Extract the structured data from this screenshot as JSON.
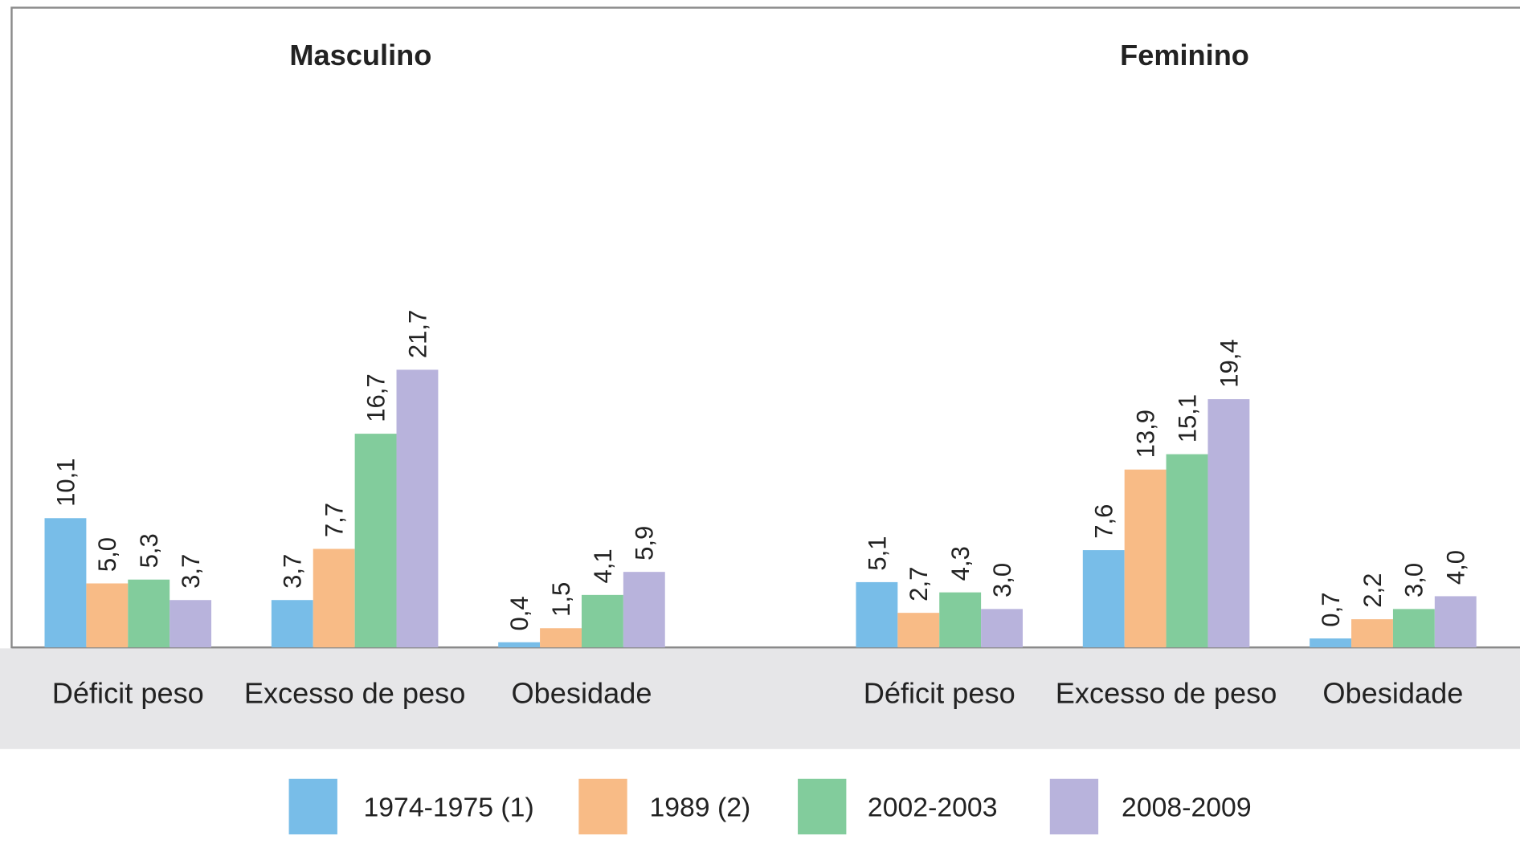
{
  "chart_data": {
    "type": "bar",
    "ylim": [
      0,
      50
    ],
    "series": [
      {
        "name": "1974-1975 (1)",
        "color": "#78bde8"
      },
      {
        "name": "1989 (2)",
        "color": "#f8bb86"
      },
      {
        "name": "2002-2003",
        "color": "#82cc9c"
      },
      {
        "name": "2008-2009",
        "color": "#b8b3dc"
      }
    ],
    "panels": [
      {
        "title": "Masculino",
        "categories": [
          "Déficit peso",
          "Excesso de peso",
          "Obesidade"
        ],
        "series": [
          {
            "values": [
              10.1,
              3.7,
              0.4
            ],
            "value_labels": [
              "10,1",
              "3,7",
              "0,4"
            ]
          },
          {
            "values": [
              5.0,
              7.7,
              1.5
            ],
            "value_labels": [
              "5,0",
              "7,7",
              "1,5"
            ]
          },
          {
            "values": [
              5.3,
              16.7,
              4.1
            ],
            "value_labels": [
              "5,3",
              "16,7",
              "4,1"
            ]
          },
          {
            "values": [
              3.7,
              21.7,
              5.9
            ],
            "value_labels": [
              "3,7",
              "21,7",
              "5,9"
            ]
          }
        ]
      },
      {
        "title": "Feminino",
        "categories": [
          "Déficit peso",
          "Excesso de peso",
          "Obesidade"
        ],
        "series": [
          {
            "values": [
              5.1,
              7.6,
              0.7
            ],
            "value_labels": [
              "5,1",
              "7,6",
              "0,7"
            ]
          },
          {
            "values": [
              2.7,
              13.9,
              2.2
            ],
            "value_labels": [
              "2,7",
              "13,9",
              "2,2"
            ]
          },
          {
            "values": [
              4.3,
              15.1,
              3.0
            ],
            "value_labels": [
              "4,3",
              "15,1",
              "3,0"
            ]
          },
          {
            "values": [
              3.0,
              19.4,
              4.0
            ],
            "value_labels": [
              "3,0",
              "19,4",
              "4,0"
            ]
          }
        ]
      }
    ]
  }
}
